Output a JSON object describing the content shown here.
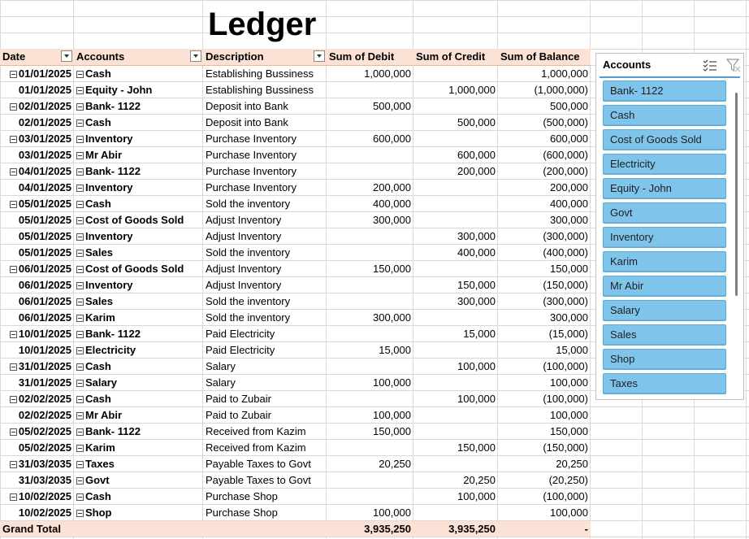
{
  "sheet": {
    "title": "Ledger"
  },
  "pivot": {
    "headers": {
      "date": "Date",
      "accounts": "Accounts",
      "description": "Description",
      "debit": "Sum of Debit",
      "credit": "Sum of Credit",
      "balance": "Sum of Balance"
    },
    "rows": [
      {
        "date": "01/01/2025",
        "group": true,
        "account": "Cash",
        "desc": "Establishing Bussiness",
        "debit": "1,000,000",
        "credit": "",
        "balance": "1,000,000"
      },
      {
        "date": "01/01/2025",
        "group": false,
        "account": "Equity - John",
        "desc": "Establishing Bussiness",
        "debit": "",
        "credit": "1,000,000",
        "balance": "(1,000,000)"
      },
      {
        "date": "02/01/2025",
        "group": true,
        "account": "Bank- 1122",
        "desc": "Deposit into Bank",
        "debit": "500,000",
        "credit": "",
        "balance": "500,000"
      },
      {
        "date": "02/01/2025",
        "group": false,
        "account": "Cash",
        "desc": "Deposit into Bank",
        "debit": "",
        "credit": "500,000",
        "balance": "(500,000)"
      },
      {
        "date": "03/01/2025",
        "group": true,
        "account": "Inventory",
        "desc": "Purchase Inventory",
        "debit": "600,000",
        "credit": "",
        "balance": "600,000"
      },
      {
        "date": "03/01/2025",
        "group": false,
        "account": "Mr Abir",
        "desc": "Purchase Inventory",
        "debit": "",
        "credit": "600,000",
        "balance": "(600,000)"
      },
      {
        "date": "04/01/2025",
        "group": true,
        "account": "Bank- 1122",
        "desc": "Purchase Inventory",
        "debit": "",
        "credit": "200,000",
        "balance": "(200,000)"
      },
      {
        "date": "04/01/2025",
        "group": false,
        "account": "Inventory",
        "desc": "Purchase Inventory",
        "debit": "200,000",
        "credit": "",
        "balance": "200,000"
      },
      {
        "date": "05/01/2025",
        "group": true,
        "account": "Cash",
        "desc": "Sold the inventory",
        "debit": "400,000",
        "credit": "",
        "balance": "400,000"
      },
      {
        "date": "05/01/2025",
        "group": false,
        "account": "Cost of Goods Sold",
        "desc": "Adjust Inventory",
        "debit": "300,000",
        "credit": "",
        "balance": "300,000"
      },
      {
        "date": "05/01/2025",
        "group": false,
        "account": "Inventory",
        "desc": "Adjust Inventory",
        "debit": "",
        "credit": "300,000",
        "balance": "(300,000)"
      },
      {
        "date": "05/01/2025",
        "group": false,
        "account": "Sales",
        "desc": "Sold the inventory",
        "debit": "",
        "credit": "400,000",
        "balance": "(400,000)"
      },
      {
        "date": "06/01/2025",
        "group": true,
        "account": "Cost of Goods Sold",
        "desc": "Adjust Inventory",
        "debit": "150,000",
        "credit": "",
        "balance": "150,000"
      },
      {
        "date": "06/01/2025",
        "group": false,
        "account": "Inventory",
        "desc": "Adjust Inventory",
        "debit": "",
        "credit": "150,000",
        "balance": "(150,000)"
      },
      {
        "date": "06/01/2025",
        "group": false,
        "account": "Sales",
        "desc": "Sold the inventory",
        "debit": "",
        "credit": "300,000",
        "balance": "(300,000)"
      },
      {
        "date": "06/01/2025",
        "group": false,
        "account": "Karim",
        "desc": "Sold the inventory",
        "debit": "300,000",
        "credit": "",
        "balance": "300,000"
      },
      {
        "date": "10/01/2025",
        "group": true,
        "account": "Bank- 1122",
        "desc": "Paid Electricity",
        "debit": "",
        "credit": "15,000",
        "balance": "(15,000)"
      },
      {
        "date": "10/01/2025",
        "group": false,
        "account": "Electricity",
        "desc": "Paid Electricity",
        "debit": "15,000",
        "credit": "",
        "balance": "15,000"
      },
      {
        "date": "31/01/2025",
        "group": true,
        "account": "Cash",
        "desc": "Salary",
        "debit": "",
        "credit": "100,000",
        "balance": "(100,000)"
      },
      {
        "date": "31/01/2025",
        "group": false,
        "account": "Salary",
        "desc": "Salary",
        "debit": "100,000",
        "credit": "",
        "balance": "100,000"
      },
      {
        "date": "02/02/2025",
        "group": true,
        "account": "Cash",
        "desc": "Paid to Zubair",
        "debit": "",
        "credit": "100,000",
        "balance": "(100,000)"
      },
      {
        "date": "02/02/2025",
        "group": false,
        "account": "Mr Abir",
        "desc": "Paid to Zubair",
        "debit": "100,000",
        "credit": "",
        "balance": "100,000"
      },
      {
        "date": "05/02/2025",
        "group": true,
        "account": "Bank- 1122",
        "desc": "Received from Kazim",
        "debit": "150,000",
        "credit": "",
        "balance": "150,000"
      },
      {
        "date": "05/02/2025",
        "group": false,
        "account": "Karim",
        "desc": "Received from Kazim",
        "debit": "",
        "credit": "150,000",
        "balance": "(150,000)"
      },
      {
        "date": "31/03/2035",
        "group": true,
        "account": "Taxes",
        "desc": "Payable Taxes to Govt",
        "debit": "20,250",
        "credit": "",
        "balance": "20,250"
      },
      {
        "date": "31/03/2035",
        "group": false,
        "account": "Govt",
        "desc": "Payable Taxes to Govt",
        "debit": "",
        "credit": "20,250",
        "balance": "(20,250)"
      },
      {
        "date": "10/02/2025",
        "group": true,
        "account": "Cash",
        "desc": "Purchase Shop",
        "debit": "",
        "credit": "100,000",
        "balance": "(100,000)"
      },
      {
        "date": "10/02/2025",
        "group": false,
        "account": "Shop",
        "desc": "Purchase Shop",
        "debit": "100,000",
        "credit": "",
        "balance": "100,000"
      }
    ],
    "grand_total": {
      "label": "Grand Total",
      "debit": "3,935,250",
      "credit": "3,935,250",
      "balance": "-"
    }
  },
  "slicer": {
    "title": "Accounts",
    "icons": [
      "multi-select-icon",
      "clear-filter-icon"
    ],
    "items": [
      "Bank- 1122",
      "Cash",
      "Cost of Goods Sold",
      "Electricity",
      "Equity - John",
      "Govt",
      "Inventory",
      "Karim",
      "Mr Abir",
      "Salary",
      "Sales",
      "Shop",
      "Taxes"
    ],
    "selected_color": "#7fc4ea"
  }
}
